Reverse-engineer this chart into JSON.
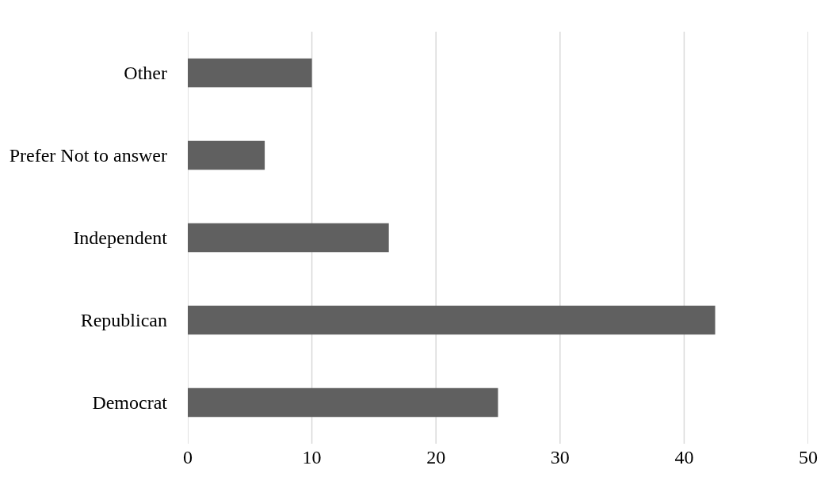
{
  "chart_data": {
    "type": "bar",
    "orientation": "horizontal",
    "categories": [
      "Other",
      "Prefer Not to answer",
      "Independent",
      "Republican",
      "Democrat"
    ],
    "values": [
      10,
      6.2,
      16.2,
      42.5,
      25
    ],
    "color": "#606060",
    "xlim": [
      0,
      50
    ],
    "xticks": [
      0,
      10,
      20,
      30,
      40,
      50
    ],
    "grid": "x"
  }
}
